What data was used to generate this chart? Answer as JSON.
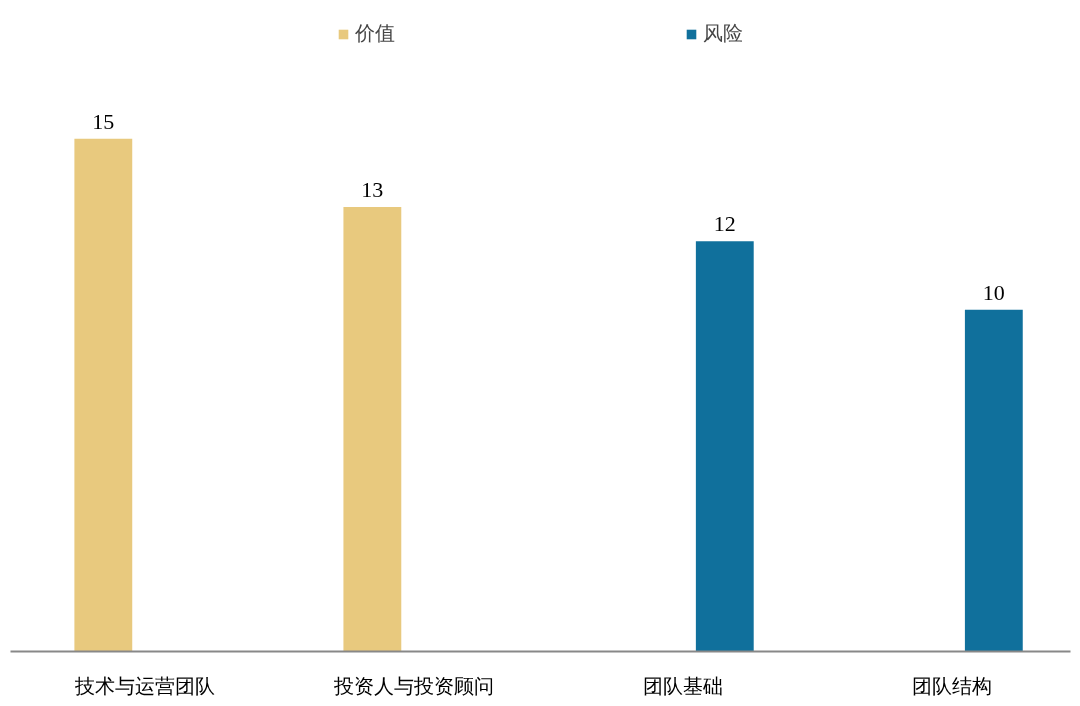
{
  "chart_data": {
    "type": "bar",
    "categories": [
      "技术与运营团队",
      "投资人与投资顾问",
      "团队基础",
      "团队结构"
    ],
    "series": [
      {
        "name": "价值",
        "color": "#e8c97e",
        "values": [
          15,
          13,
          null,
          null
        ]
      },
      {
        "name": "风险",
        "color": "#10709c",
        "values": [
          null,
          null,
          12,
          10
        ]
      }
    ],
    "data_labels": true,
    "legend": "top",
    "grid": false
  }
}
